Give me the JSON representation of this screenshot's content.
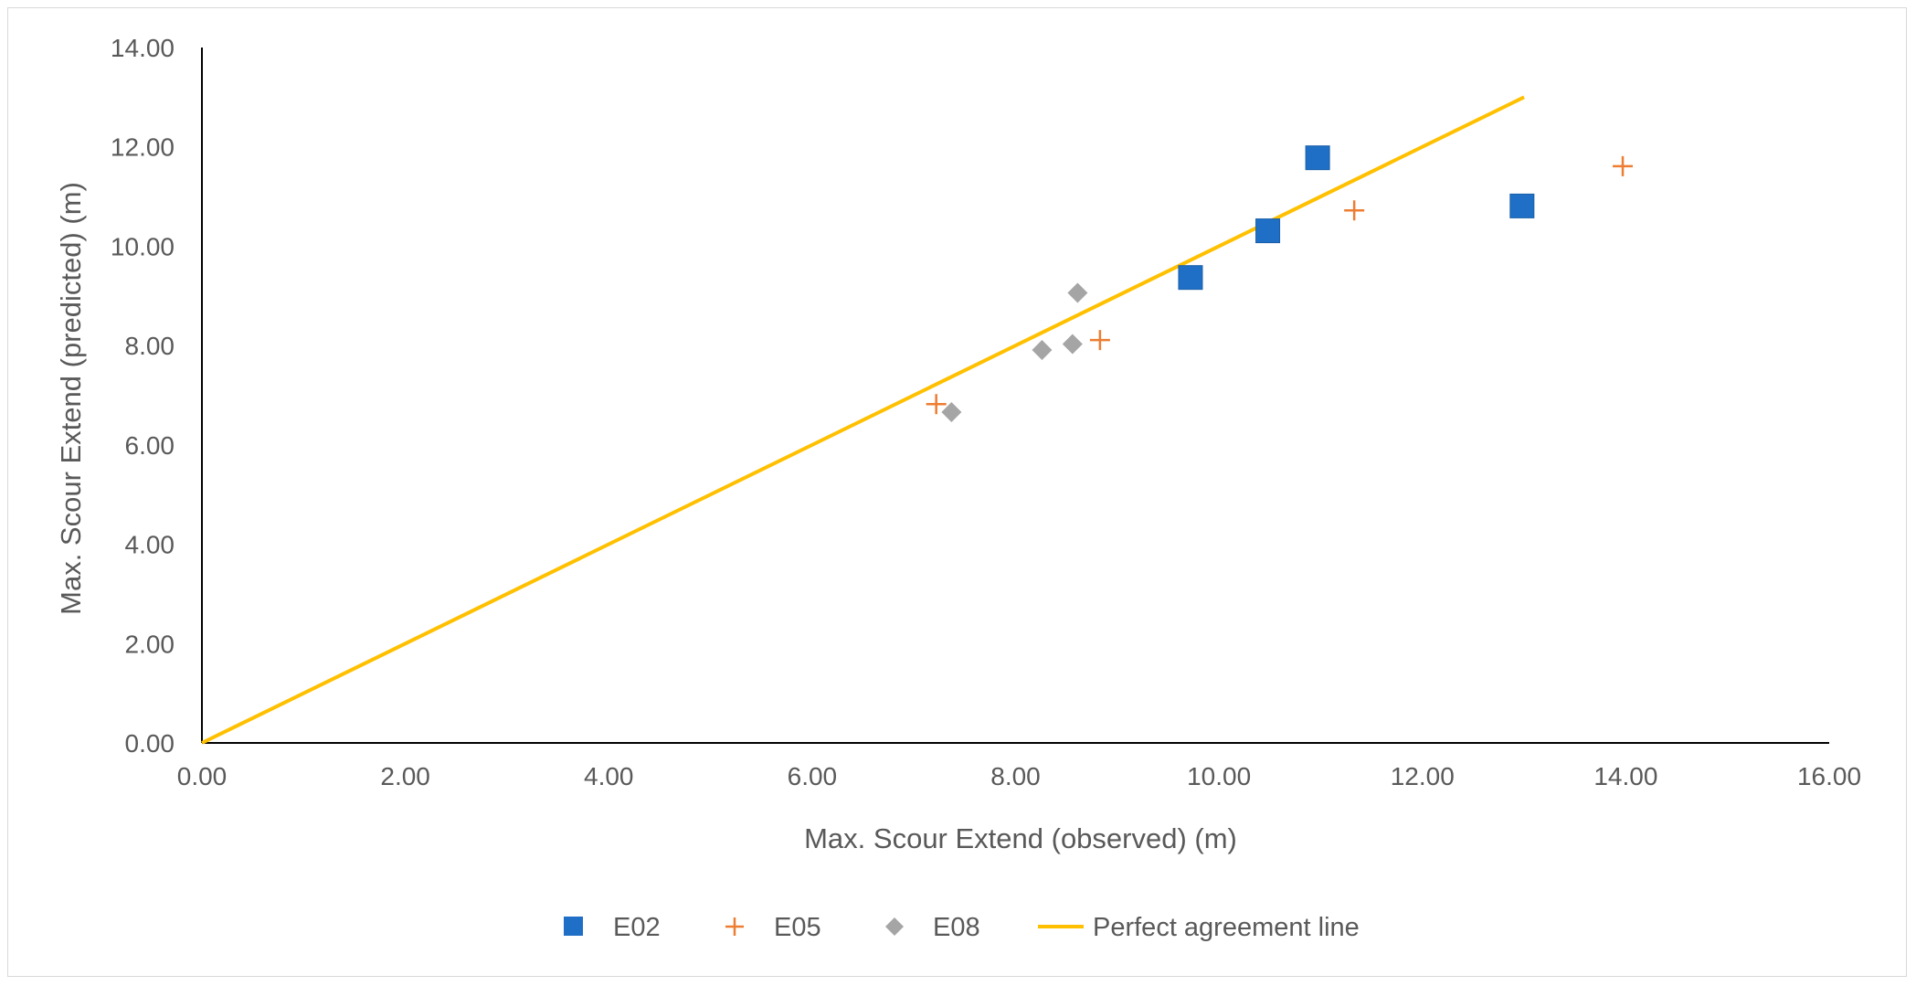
{
  "chart_data": {
    "type": "scatter",
    "title": "",
    "xlabel": "Max. Scour Extend (observed)  (m)",
    "ylabel": "Max. Scour Extend (predicted)  (m)",
    "xlim": [
      0,
      16
    ],
    "ylim": [
      0,
      14
    ],
    "x_ticks": [
      "0.00",
      "2.00",
      "4.00",
      "6.00",
      "8.00",
      "10.00",
      "12.00",
      "14.00",
      "16.00"
    ],
    "y_ticks": [
      "0.00",
      "2.00",
      "4.00",
      "6.00",
      "8.00",
      "10.00",
      "12.00",
      "14.00"
    ],
    "grid": false,
    "legend_position": "bottom",
    "series": [
      {
        "name": "E02",
        "marker": "square",
        "color": "#1f6fc6",
        "points": [
          {
            "x": 9.72,
            "y": 9.37
          },
          {
            "x": 10.48,
            "y": 10.31
          },
          {
            "x": 10.97,
            "y": 11.78
          },
          {
            "x": 12.98,
            "y": 10.81
          }
        ]
      },
      {
        "name": "E05",
        "marker": "plus",
        "color": "#ed7d31",
        "points": [
          {
            "x": 7.22,
            "y": 6.82
          },
          {
            "x": 8.83,
            "y": 8.11
          },
          {
            "x": 11.33,
            "y": 10.72
          },
          {
            "x": 13.97,
            "y": 11.61
          }
        ]
      },
      {
        "name": "E08",
        "marker": "diamond",
        "color": "#a5a5a5",
        "points": [
          {
            "x": 7.37,
            "y": 6.66
          },
          {
            "x": 8.26,
            "y": 7.91
          },
          {
            "x": 8.56,
            "y": 8.03
          },
          {
            "x": 8.61,
            "y": 9.06
          }
        ]
      },
      {
        "name": "Perfect agreement line",
        "marker": "line",
        "color": "#ffc000",
        "points": [
          {
            "x": 0,
            "y": 0
          },
          {
            "x": 13.0,
            "y": 13.0
          }
        ]
      }
    ]
  }
}
